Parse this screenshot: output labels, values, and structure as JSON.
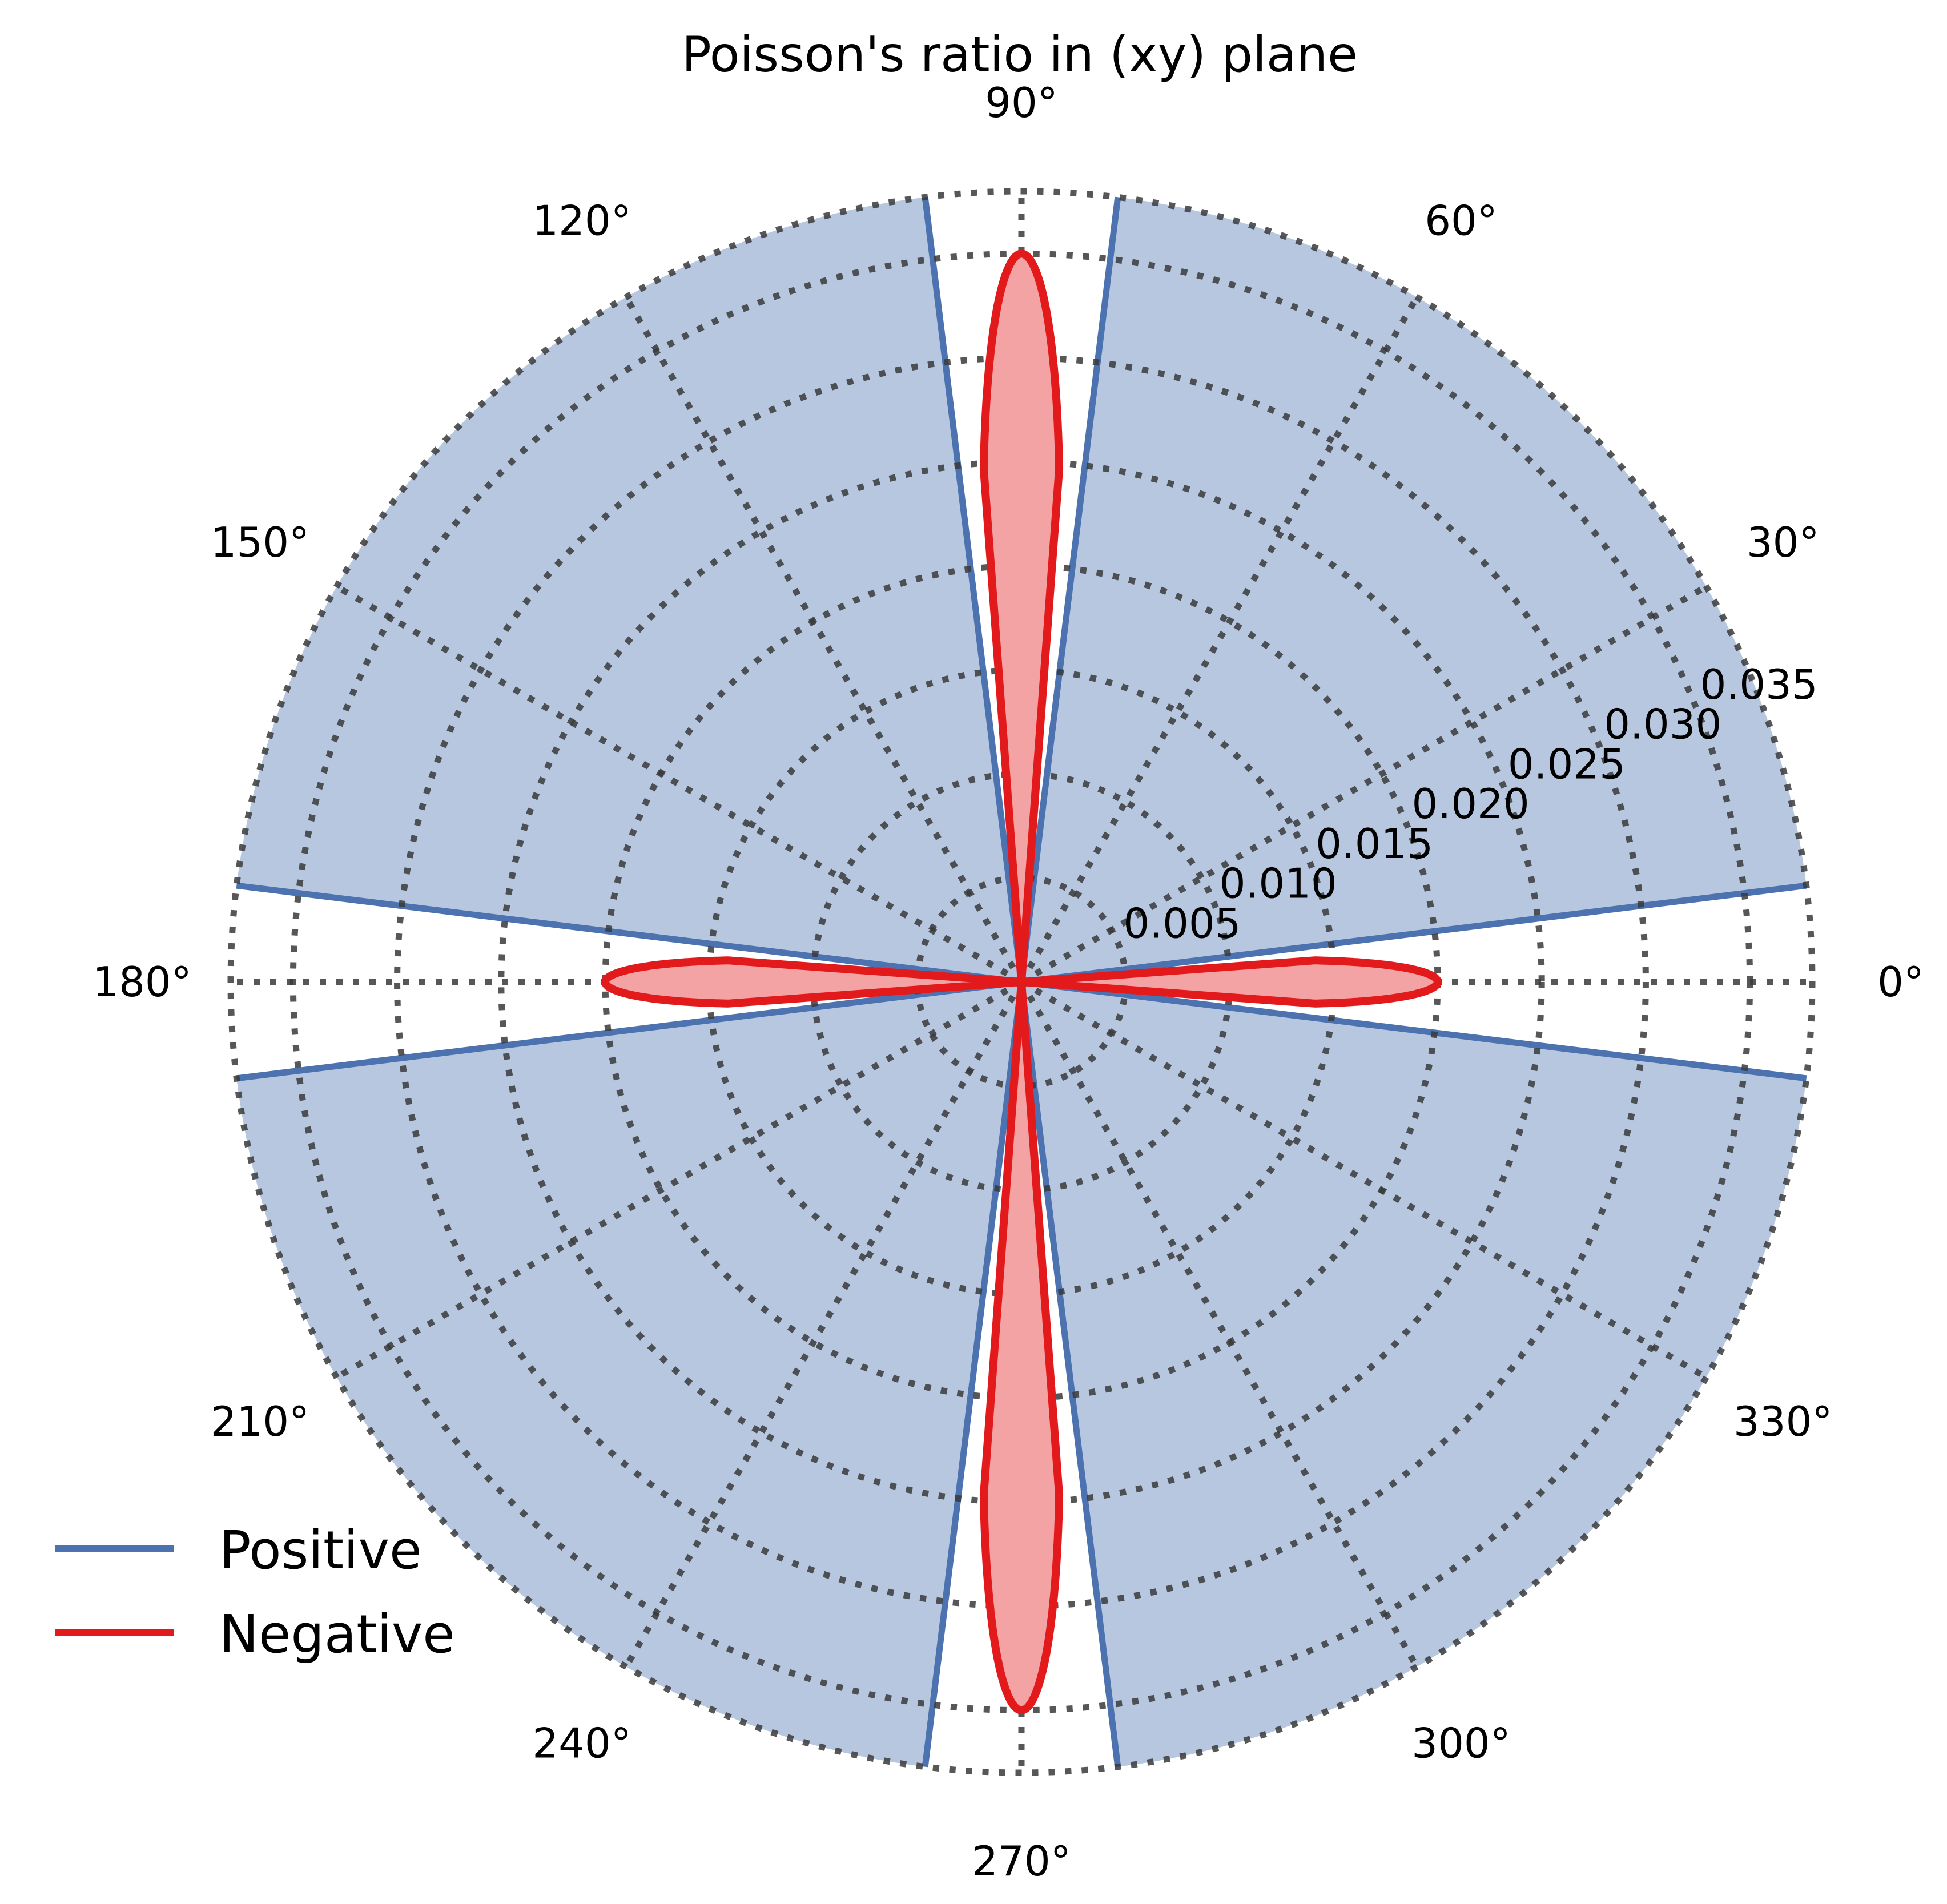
{
  "chart_data": {
    "type": "polar",
    "title": "Poisson's ratio in (xy) plane",
    "angle_ticks_deg": [
      0,
      30,
      60,
      90,
      120,
      150,
      180,
      210,
      240,
      270,
      300,
      330
    ],
    "angle_tick_labels": [
      "0°",
      "30°",
      "60°",
      "90°",
      "120°",
      "150°",
      "180°",
      "210°",
      "240°",
      "270°",
      "300°",
      "330°"
    ],
    "radial_ticks": [
      0.005,
      0.01,
      0.015,
      0.02,
      0.025,
      0.03,
      0.035
    ],
    "radial_tick_labels": [
      "0.005",
      "0.010",
      "0.015",
      "0.020",
      "0.025",
      "0.030",
      "0.035"
    ],
    "rlim": [
      0,
      0.038
    ],
    "grid": "dotted",
    "series": [
      {
        "name": "Positive",
        "color": "#4c72b0",
        "fill": "#b7c7e0",
        "description_values": {
          "value_outside_gaps": 0.038,
          "gap_centers_deg": [
            0,
            90,
            180,
            270
          ],
          "gap_half_width_deg": 7
        }
      },
      {
        "name": "Negative",
        "color": "#e31a1c",
        "fill": "#f4a3a5",
        "lobes": [
          {
            "angle_deg": 0,
            "peak": 0.02
          },
          {
            "angle_deg": 90,
            "peak": 0.035
          },
          {
            "angle_deg": 180,
            "peak": 0.02
          },
          {
            "angle_deg": 270,
            "peak": 0.035
          }
        ]
      }
    ],
    "legend": {
      "location": "lower-left",
      "entries": [
        "Positive",
        "Negative"
      ]
    }
  }
}
